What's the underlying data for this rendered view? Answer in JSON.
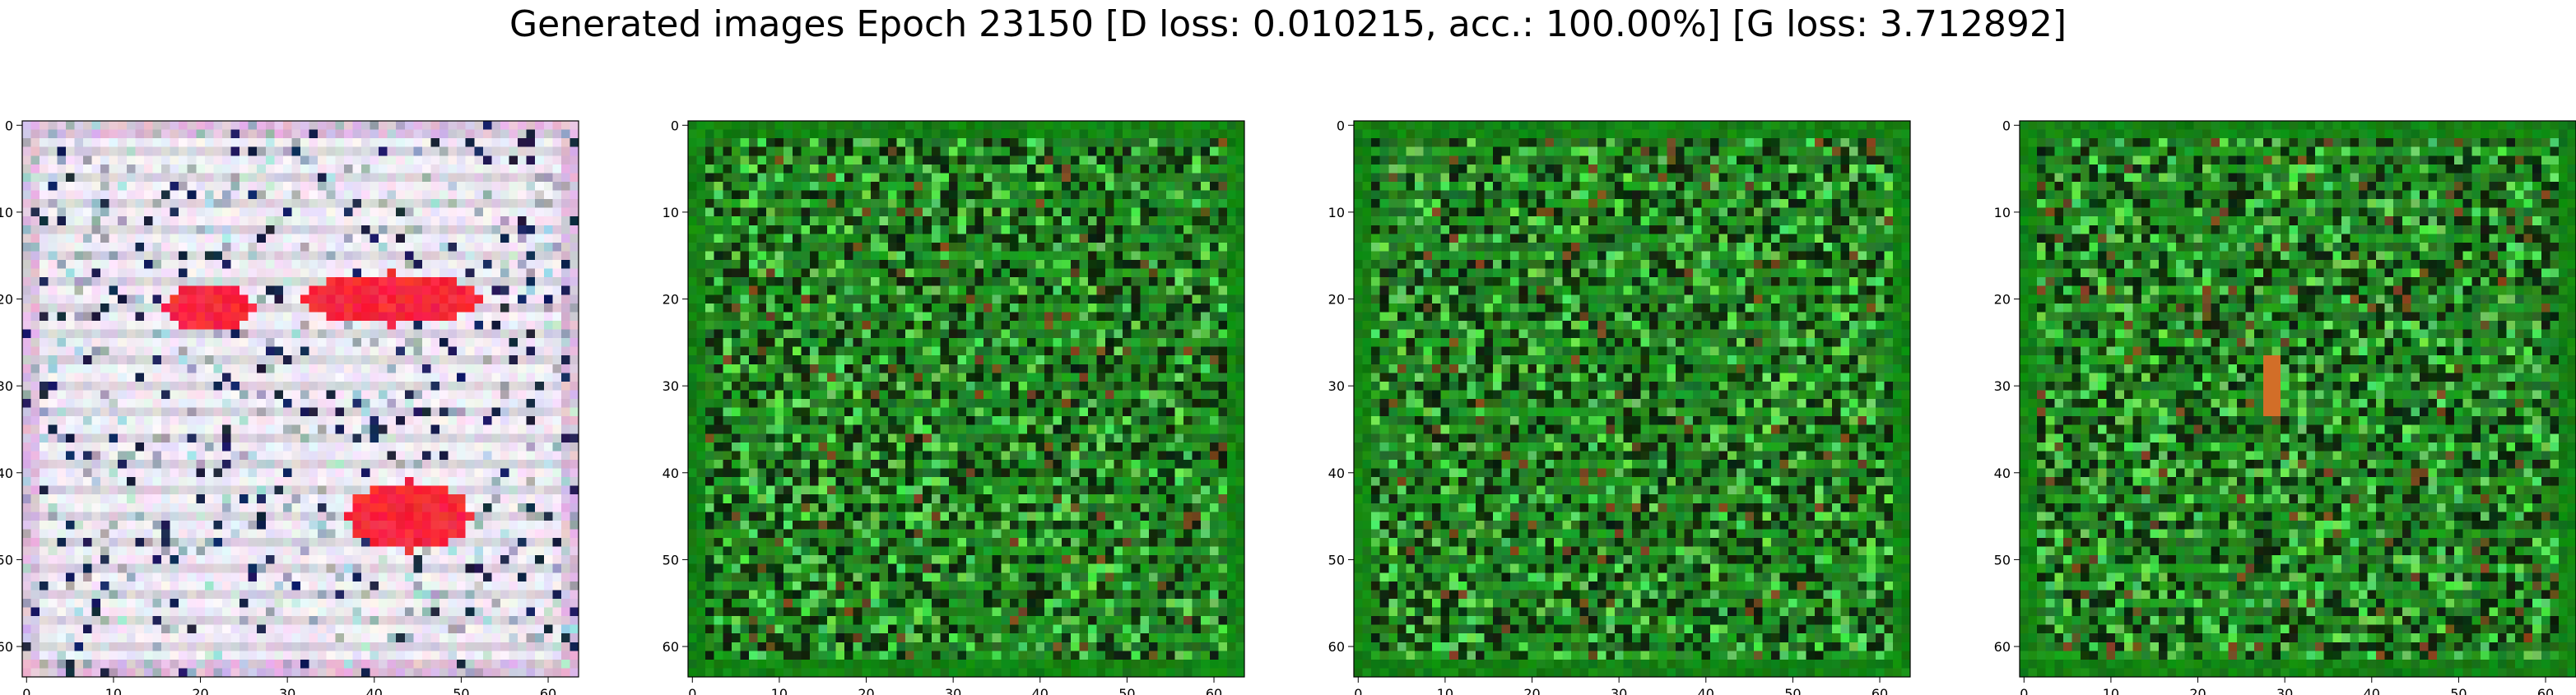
{
  "title": "Generated images Epoch 23150 [D loss: 0.010215, acc.: 100.00%] [G loss: 3.712892]",
  "images": [
    {
      "dominant_color": "#ddd7e6",
      "variant": "pink-white"
    },
    {
      "dominant_color": "#1f8a1f",
      "variant": "green"
    },
    {
      "dominant_color": "#1f8a1f",
      "variant": "green"
    },
    {
      "dominant_color": "#1f8a1f",
      "variant": "green"
    }
  ],
  "x_tick_labels": [
    "0",
    "10",
    "20",
    "30",
    "40",
    "50",
    "60"
  ],
  "y_tick_labels": [
    "0",
    "10",
    "20",
    "30",
    "40",
    "50",
    "60"
  ]
}
